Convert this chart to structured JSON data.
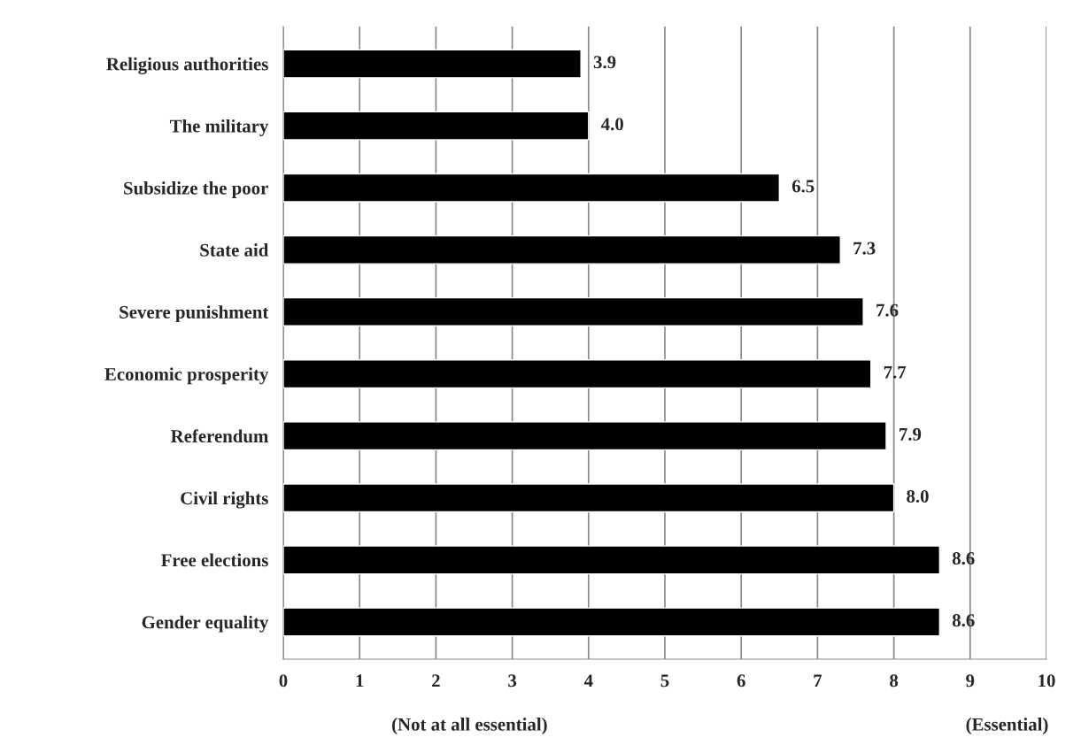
{
  "chart_data": {
    "type": "bar",
    "orientation": "horizontal",
    "categories": [
      "Religious authorities",
      "The military",
      "Subsidize the poor",
      "State aid",
      "Severe punishment",
      "Economic prosperity",
      "Referendum",
      "Civil rights",
      "Free elections",
      "Gender equality"
    ],
    "values": [
      3.9,
      4.0,
      6.5,
      7.3,
      7.6,
      7.7,
      7.9,
      8.0,
      8.6,
      8.6
    ],
    "color": "#000000",
    "value_labels": [
      "3.9",
      "4.0",
      "6.5",
      "7.3",
      "7.6",
      "7.7",
      "7.9",
      "8.0",
      "8.6",
      "8.6"
    ],
    "xlim": [
      0,
      10
    ],
    "xticks": [
      0,
      1,
      2,
      3,
      4,
      5,
      6,
      7,
      8,
      9,
      10
    ],
    "grid": "x",
    "annotations": [
      "(Not at all essential)",
      "(Essential)"
    ]
  }
}
